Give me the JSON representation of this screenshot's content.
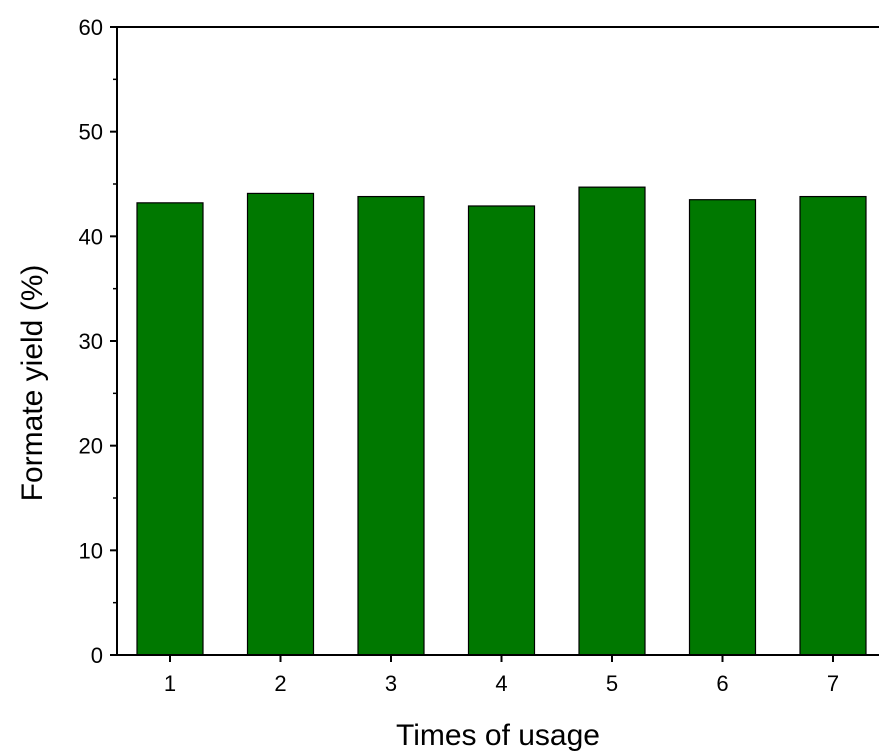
{
  "chart_data": {
    "type": "bar",
    "title": "",
    "xlabel": "Times of usage",
    "ylabel": "Formate yield (%)",
    "categories": [
      "1",
      "2",
      "3",
      "4",
      "5",
      "6",
      "7"
    ],
    "values": [
      43.2,
      44.1,
      43.8,
      42.9,
      44.7,
      43.5,
      43.8
    ],
    "ylim": [
      0,
      60
    ],
    "yticks": [
      0,
      10,
      20,
      30,
      40,
      50,
      60
    ],
    "y_minor_step": 5,
    "grid": false,
    "legend": "none",
    "colors": {
      "bar_fill": "#007800",
      "bar_stroke": "#000000",
      "axis": "#000000"
    }
  }
}
